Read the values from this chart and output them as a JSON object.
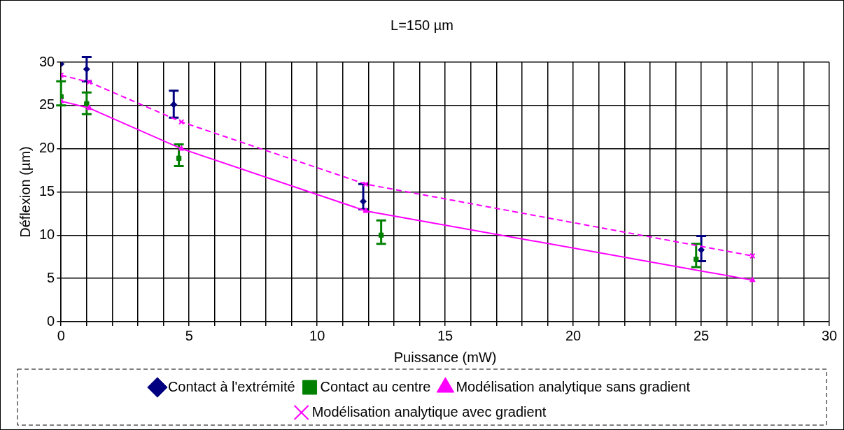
{
  "chart_data": {
    "type": "scatter",
    "title": "L=150 µm",
    "xlabel": "Puissance (mW)",
    "ylabel": "Déflexion (µm)",
    "xlim": [
      0,
      30
    ],
    "ylim": [
      0,
      30
    ],
    "xticks": [
      0,
      {
        "value": 1,
        "label": null
      },
      {
        "value": 2,
        "label": null
      },
      {
        "value": 3,
        "label": null
      },
      {
        "value": 4,
        "label": null
      },
      5,
      {
        "value": 6,
        "label": null
      },
      {
        "value": 7,
        "label": null
      },
      {
        "value": 8,
        "label": null
      },
      {
        "value": 9,
        "label": null
      },
      10,
      {
        "value": 11,
        "label": null
      },
      {
        "value": 12,
        "label": null
      },
      {
        "value": 13,
        "label": null
      },
      {
        "value": 14,
        "label": null
      },
      15,
      {
        "value": 16,
        "label": null
      },
      {
        "value": 17,
        "label": null
      },
      {
        "value": 18,
        "label": null
      },
      {
        "value": 19,
        "label": null
      },
      20,
      {
        "value": 21,
        "label": null
      },
      {
        "value": 22,
        "label": null
      },
      {
        "value": 23,
        "label": null
      },
      {
        "value": 24,
        "label": null
      },
      25,
      {
        "value": 26,
        "label": null
      },
      {
        "value": 27,
        "label": null
      },
      {
        "value": 28,
        "label": null
      },
      {
        "value": 29,
        "label": null
      },
      30
    ],
    "yticks": [
      0,
      5,
      10,
      15,
      20,
      25,
      30
    ],
    "grid": true,
    "legend": "bottom",
    "series": [
      {
        "name": "Contact à l'extrémité",
        "type": "scatter",
        "marker": "diamond",
        "color": "#000080",
        "x": [
          0,
          1.0,
          4.4,
          11.8,
          25.0
        ],
        "values": [
          29.8,
          29.2,
          25.1,
          13.9,
          8.3
        ],
        "errors": [
          null,
          [
            27.8,
            30.6
          ],
          [
            23.6,
            26.7
          ],
          [
            13.0,
            15.9
          ],
          [
            7.0,
            9.9
          ]
        ]
      },
      {
        "name": "Contact au centre",
        "type": "scatter",
        "marker": "square",
        "color": "#008000",
        "x": [
          0,
          1.0,
          4.6,
          12.5,
          24.8
        ],
        "values": [
          26.0,
          25.2,
          18.9,
          10.0,
          7.2
        ],
        "errors": [
          [
            25.0,
            27.8
          ],
          [
            24.0,
            26.5
          ],
          [
            18.0,
            20.5
          ],
          [
            9.0,
            11.7
          ],
          [
            6.3,
            9.0
          ]
        ]
      },
      {
        "name": "Modélisation analytique sans gradient",
        "type": "line",
        "marker": "triangle",
        "line_style": "solid",
        "color": "#ff00ff",
        "x": [
          0,
          1.1,
          4.7,
          11.9,
          27.0
        ],
        "values": [
          25.5,
          24.7,
          20.0,
          12.8,
          4.8
        ]
      },
      {
        "name": "Modélisation analytique avec gradient",
        "type": "line",
        "marker": "cross",
        "line_style": "dashed",
        "color": "#ff00ff",
        "x": [
          0,
          1.1,
          4.7,
          11.9,
          27.0
        ],
        "values": [
          28.5,
          27.7,
          23.1,
          15.9,
          7.6
        ]
      }
    ]
  }
}
